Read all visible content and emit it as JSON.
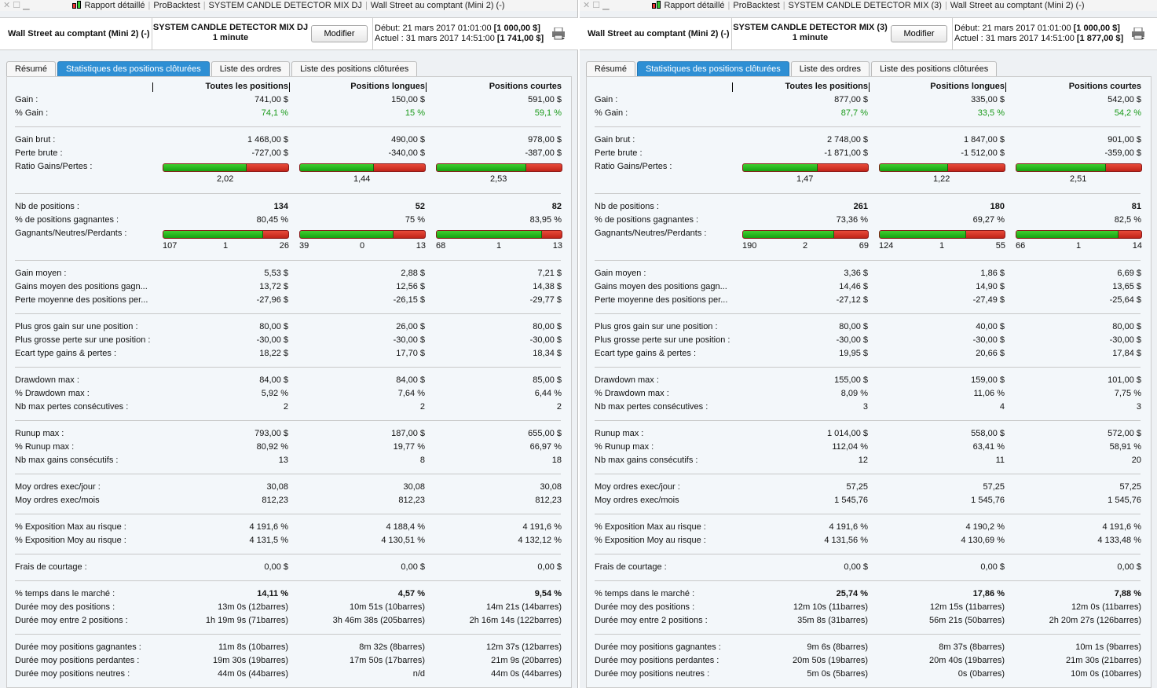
{
  "colors": {
    "accent_tab": "#2e8fd4",
    "positive": "#1a9a1a",
    "bar_win": "#22b81a",
    "bar_loss": "#d8352a"
  },
  "columns": [
    "Toutes les positions",
    "Positions longues",
    "Positions courtes"
  ],
  "tabs": [
    "Résumé",
    "Statistiques des positions clôturées",
    "Liste des ordres",
    "Liste des positions clôturées"
  ],
  "active_tab": 1,
  "panels": [
    {
      "title": [
        "Rapport détaillé",
        "ProBacktest",
        "SYSTEM CANDLE DETECTOR MIX DJ",
        "Wall Street au comptant (Mini 2) (-)"
      ],
      "instrument": "Wall Street au comptant (Mini 2) (-)",
      "system": "SYSTEM CANDLE DETECTOR MIX DJ",
      "timeframe": "1 minute",
      "modify_label": "Modifier",
      "start_label": "Début:",
      "start_date": "21 mars 2017 01:01:00",
      "start_value": "[1 000,00 $]",
      "current_label": "Actuel :",
      "current_date": "31 mars 2017 14:51:00",
      "current_value": "[1 741,00 $]",
      "sections": [
        [
          [
            "Gain :",
            "741,00 $",
            "150,00 $",
            "591,00 $"
          ],
          [
            "% Gain :",
            "74,1 %",
            "15 %",
            "59,1 %",
            "green"
          ]
        ],
        [
          [
            "Gain brut :",
            "1 468,00 $",
            "490,00 $",
            "978,00 $"
          ],
          [
            "Perte brute :",
            "-727,00 $",
            "-340,00 $",
            "-387,00 $"
          ],
          {
            "bar": "ratio",
            "label": "Ratio Gains/Pertes :",
            "fill": [
              0.669,
              0.59,
              0.717
            ],
            "values": [
              "2,02",
              "1,44",
              "2,53"
            ]
          }
        ],
        [
          [
            "Nb de positions :",
            "134",
            "52",
            "82",
            "bold"
          ],
          [
            "% de positions gagnantes :",
            "80,45 %",
            "75 %",
            "83,95 %"
          ],
          {
            "bar": "gnp",
            "label": "Gagnants/Neutres/Perdants :",
            "fill": [
              0.8,
              0.75,
              0.84
            ],
            "values": [
              [
                "107",
                "1",
                "26"
              ],
              [
                "39",
                "0",
                "13"
              ],
              [
                "68",
                "1",
                "13"
              ]
            ]
          }
        ],
        [
          [
            "Gain moyen :",
            "5,53 $",
            "2,88 $",
            "7,21 $"
          ],
          [
            "Gains moyen des positions gagn...",
            "13,72 $",
            "12,56 $",
            "14,38 $"
          ],
          [
            "Perte moyenne des positions per...",
            "-27,96 $",
            "-26,15 $",
            "-29,77 $"
          ]
        ],
        [
          [
            "Plus gros gain sur une position :",
            "80,00 $",
            "26,00 $",
            "80,00 $"
          ],
          [
            "Plus grosse perte sur une position :",
            "-30,00 $",
            "-30,00 $",
            "-30,00 $"
          ],
          [
            "Ecart type gains & pertes :",
            "18,22 $",
            "17,70 $",
            "18,34 $"
          ]
        ],
        [
          [
            "Drawdown max :",
            "84,00 $",
            "84,00 $",
            "85,00 $"
          ],
          [
            "% Drawdown max :",
            "5,92 %",
            "7,64 %",
            "6,44 %"
          ],
          [
            "Nb max pertes consécutives :",
            "2",
            "2",
            "2"
          ]
        ],
        [
          [
            "Runup max :",
            "793,00 $",
            "187,00 $",
            "655,00 $"
          ],
          [
            "% Runup max :",
            "80,92 %",
            "19,77 %",
            "66,97 %"
          ],
          [
            "Nb max gains consécutifs :",
            "13",
            "8",
            "18"
          ]
        ],
        [
          [
            "Moy ordres exec/jour :",
            "30,08",
            "30,08",
            "30,08"
          ],
          [
            "Moy ordres exec/mois",
            "812,23",
            "812,23",
            "812,23"
          ]
        ],
        [
          [
            "% Exposition Max au risque :",
            "4 191,6 %",
            "4 188,4 %",
            "4 191,6 %"
          ],
          [
            "% Exposition Moy au risque :",
            "4 131,5 %",
            "4 130,51 %",
            "4 132,12 %"
          ]
        ],
        [
          [
            "Frais de courtage :",
            "0,00 $",
            "0,00 $",
            "0,00 $"
          ]
        ],
        [
          [
            "% temps dans le marché :",
            "14,11 %",
            "4,57 %",
            "9,54 %",
            "bold"
          ],
          [
            "Durée moy des positions :",
            "13m 0s (12barres)",
            "10m 51s (10barres)",
            "14m 21s (14barres)"
          ],
          [
            "Durée moy entre 2 positions :",
            "1h 19m 9s (71barres)",
            "3h 46m 38s (205barres)",
            "2h 16m 14s (122barres)"
          ]
        ],
        [
          [
            "Durée moy positions gagnantes :",
            "11m 8s (10barres)",
            "8m 32s (8barres)",
            "12m 37s (12barres)"
          ],
          [
            "Durée moy positions perdantes :",
            "19m 30s (19barres)",
            "17m 50s (17barres)",
            "21m 9s (20barres)"
          ],
          [
            "Durée moy positions neutres :",
            "44m 0s (44barres)",
            "n/d",
            "44m 0s (44barres)"
          ]
        ]
      ]
    },
    {
      "title": [
        "Rapport détaillé",
        "ProBacktest",
        "SYSTEM CANDLE DETECTOR MIX (3)",
        "Wall Street au comptant (Mini 2) (-)"
      ],
      "instrument": "Wall Street au comptant (Mini 2) (-)",
      "system": "SYSTEM CANDLE DETECTOR MIX (3)",
      "timeframe": "1 minute",
      "modify_label": "Modifier",
      "start_label": "Début:",
      "start_date": "21 mars 2017 01:01:00",
      "start_value": "[1 000,00 $]",
      "current_label": "Actuel :",
      "current_date": "31 mars 2017 14:51:00",
      "current_value": "[1 877,00 $]",
      "sections": [
        [
          [
            "Gain :",
            "877,00 $",
            "335,00 $",
            "542,00 $"
          ],
          [
            "% Gain :",
            "87,7 %",
            "33,5 %",
            "54,2 %",
            "green"
          ]
        ],
        [
          [
            "Gain brut :",
            "2 748,00 $",
            "1 847,00 $",
            "901,00 $"
          ],
          [
            "Perte brute :",
            "-1 871,00 $",
            "-1 512,00 $",
            "-359,00 $"
          ],
          {
            "bar": "ratio",
            "label": "Ratio Gains/Pertes :",
            "fill": [
              0.595,
              0.55,
              0.715
            ],
            "values": [
              "1,47",
              "1,22",
              "2,51"
            ]
          }
        ],
        [
          [
            "Nb de positions :",
            "261",
            "180",
            "81",
            "bold"
          ],
          [
            "% de positions gagnantes :",
            "73,36 %",
            "69,27 %",
            "82,5 %"
          ],
          {
            "bar": "gnp",
            "label": "Gagnants/Neutres/Perdants :",
            "fill": [
              0.73,
              0.69,
              0.82
            ],
            "values": [
              [
                "190",
                "2",
                "69"
              ],
              [
                "124",
                "1",
                "55"
              ],
              [
                "66",
                "1",
                "14"
              ]
            ]
          }
        ],
        [
          [
            "Gain moyen :",
            "3,36 $",
            "1,86 $",
            "6,69 $"
          ],
          [
            "Gains moyen des positions gagn...",
            "14,46 $",
            "14,90 $",
            "13,65 $"
          ],
          [
            "Perte moyenne des positions per...",
            "-27,12 $",
            "-27,49 $",
            "-25,64 $"
          ]
        ],
        [
          [
            "Plus gros gain sur une position :",
            "80,00 $",
            "40,00 $",
            "80,00 $"
          ],
          [
            "Plus grosse perte sur une position :",
            "-30,00 $",
            "-30,00 $",
            "-30,00 $"
          ],
          [
            "Ecart type gains & pertes :",
            "19,95 $",
            "20,66 $",
            "17,84 $"
          ]
        ],
        [
          [
            "Drawdown max :",
            "155,00 $",
            "159,00 $",
            "101,00 $"
          ],
          [
            "% Drawdown max :",
            "8,09 %",
            "11,06 %",
            "7,75 %"
          ],
          [
            "Nb max pertes consécutives :",
            "3",
            "4",
            "3"
          ]
        ],
        [
          [
            "Runup max :",
            "1 014,00 $",
            "558,00 $",
            "572,00 $"
          ],
          [
            "% Runup max :",
            "112,04 %",
            "63,41 %",
            "58,91 %"
          ],
          [
            "Nb max gains consécutifs :",
            "12",
            "11",
            "20"
          ]
        ],
        [
          [
            "Moy ordres exec/jour :",
            "57,25",
            "57,25",
            "57,25"
          ],
          [
            "Moy ordres exec/mois",
            "1 545,76",
            "1 545,76",
            "1 545,76"
          ]
        ],
        [
          [
            "% Exposition Max au risque :",
            "4 191,6 %",
            "4 190,2 %",
            "4 191,6 %"
          ],
          [
            "% Exposition Moy au risque :",
            "4 131,56 %",
            "4 130,69 %",
            "4 133,48 %"
          ]
        ],
        [
          [
            "Frais de courtage :",
            "0,00 $",
            "0,00 $",
            "0,00 $"
          ]
        ],
        [
          [
            "% temps dans le marché :",
            "25,74 %",
            "17,86 %",
            "7,88 %",
            "bold"
          ],
          [
            "Durée moy des positions :",
            "12m 10s (11barres)",
            "12m 15s (11barres)",
            "12m 0s (11barres)"
          ],
          [
            "Durée moy entre 2 positions :",
            "35m 8s (31barres)",
            "56m 21s (50barres)",
            "2h 20m 27s (126barres)"
          ]
        ],
        [
          [
            "Durée moy positions gagnantes :",
            "9m 6s (8barres)",
            "8m 37s (8barres)",
            "10m 1s (9barres)"
          ],
          [
            "Durée moy positions perdantes :",
            "20m 50s (19barres)",
            "20m 40s (19barres)",
            "21m 30s (21barres)"
          ],
          [
            "Durée moy positions neutres :",
            "5m 0s (5barres)",
            "0s (0barres)",
            "10m 0s (10barres)"
          ]
        ]
      ]
    }
  ]
}
